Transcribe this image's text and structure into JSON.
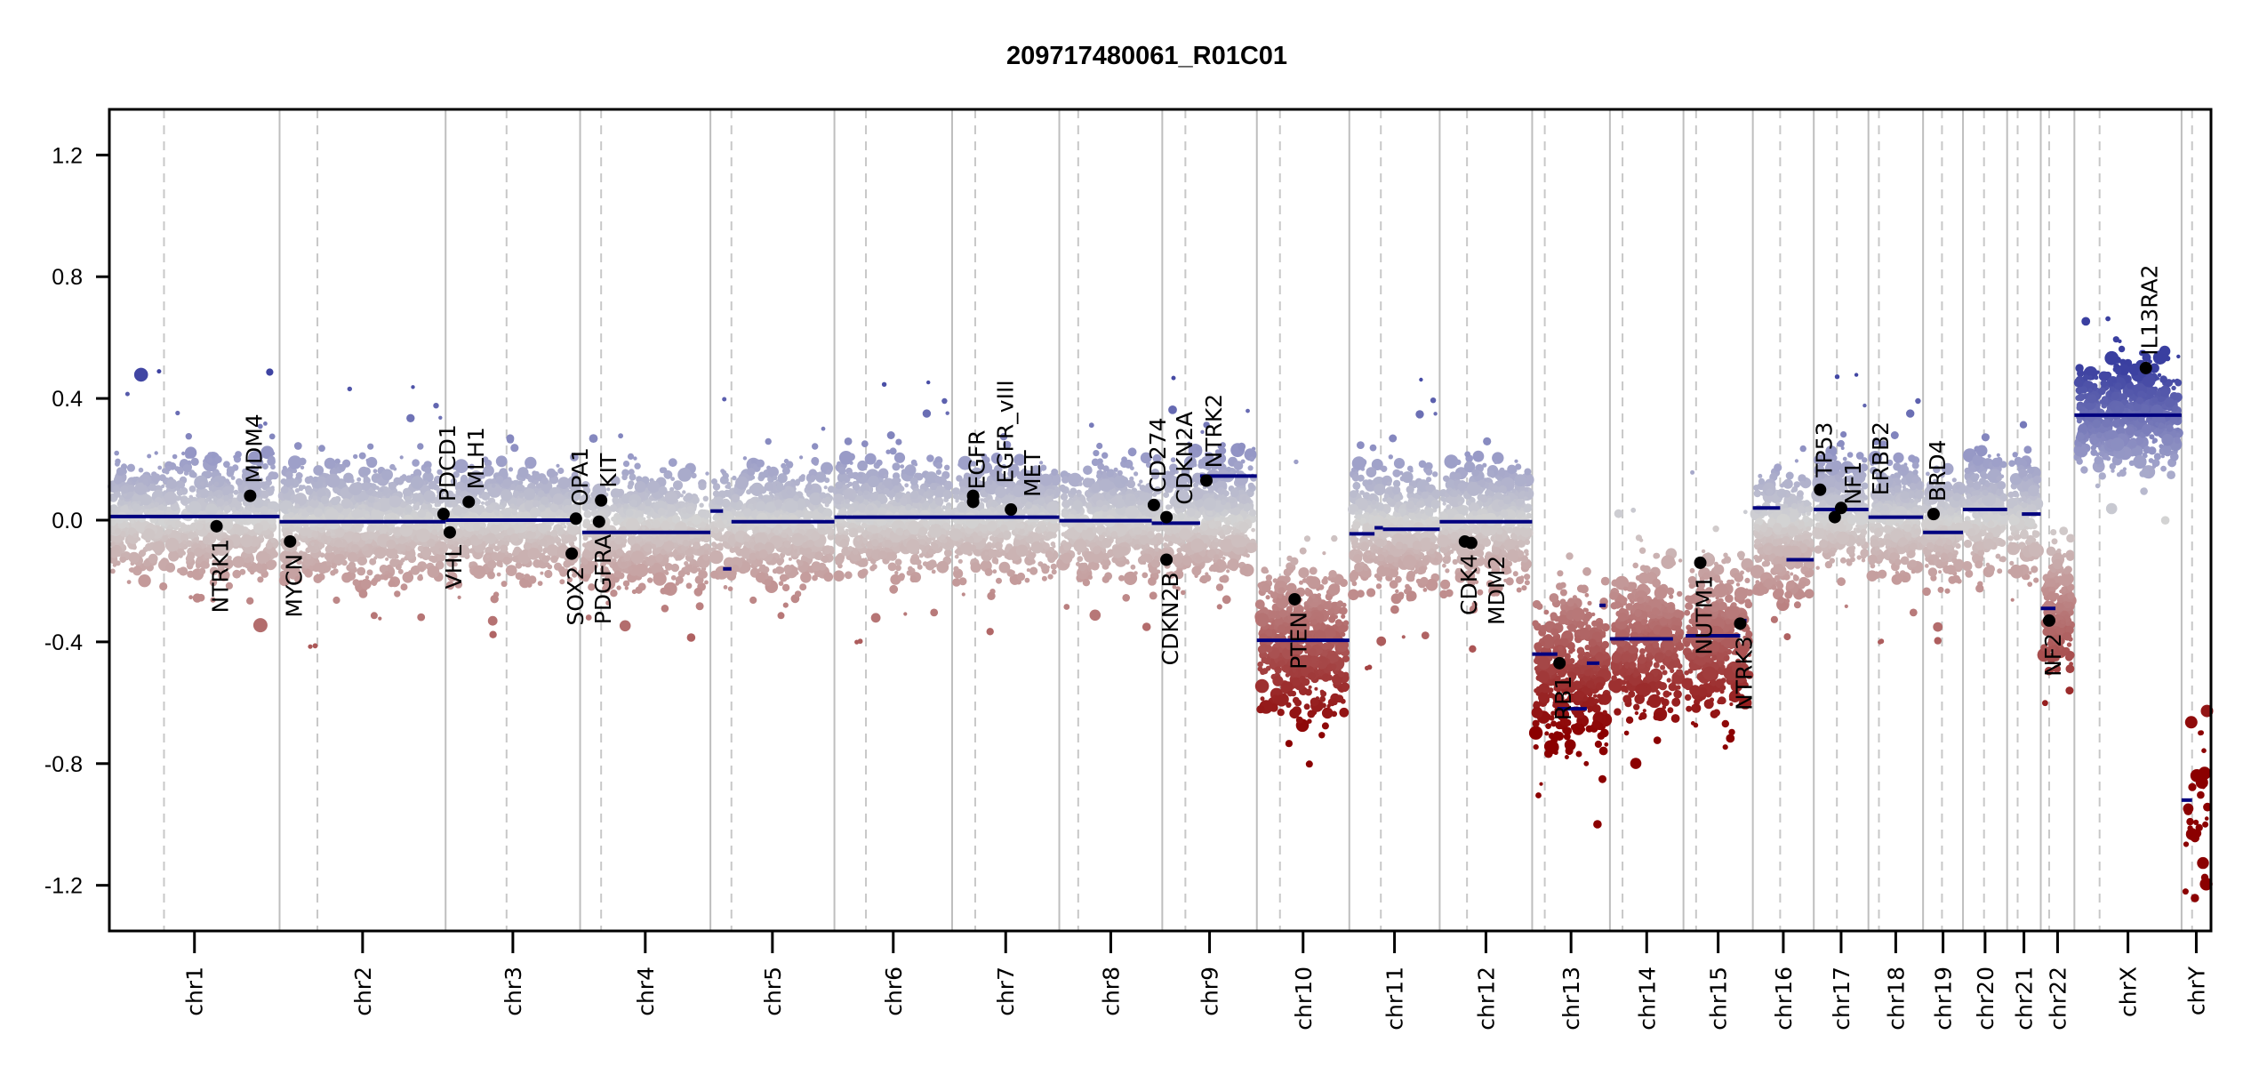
{
  "chart_data": {
    "type": "scatter",
    "title": "209717480061_R01C01",
    "xlabel": "",
    "ylabel": "",
    "ylim": [
      -1.35,
      1.35
    ],
    "y_ticks": [
      "1.2",
      "0.8",
      "0.4",
      "0.0",
      "-0.4",
      "-0.8",
      "-1.2"
    ],
    "y_tick_values": [
      1.2,
      0.8,
      0.4,
      0.0,
      -0.4,
      -0.8,
      -1.2
    ],
    "grid": "chromosome boundaries (solid grey) and centromeres (dashed grey)",
    "legend": "none",
    "colors": {
      "segment": "#00007f",
      "gain_strong": "#3a3fa0",
      "gain": "#9b9dc8",
      "neutral": "#d3d3d3",
      "loss": "#c49a9a",
      "loss_strong": "#8b0000",
      "gene_point": "#000000",
      "boundary": "#bebebe"
    },
    "chromosomes": [
      {
        "name": "chr1",
        "start": 0.0,
        "end": 8.1,
        "centromere": 2.6
      },
      {
        "name": "chr2",
        "start": 8.1,
        "end": 16.0,
        "centromere": 9.9
      },
      {
        "name": "chr3",
        "start": 16.0,
        "end": 22.4,
        "centromere": 18.9
      },
      {
        "name": "chr4",
        "start": 22.4,
        "end": 28.6,
        "centromere": 23.4
      },
      {
        "name": "chr5",
        "start": 28.6,
        "end": 34.5,
        "centromere": 29.6
      },
      {
        "name": "chr6",
        "start": 34.5,
        "end": 40.1,
        "centromere": 36.0
      },
      {
        "name": "chr7",
        "start": 40.1,
        "end": 45.2,
        "centromere": 41.2
      },
      {
        "name": "chr8",
        "start": 45.2,
        "end": 50.1,
        "centromere": 46.1
      },
      {
        "name": "chr9",
        "start": 50.1,
        "end": 54.6,
        "centromere": 51.2
      },
      {
        "name": "chr10",
        "start": 54.6,
        "end": 59.0,
        "centromere": 55.7
      },
      {
        "name": "chr11",
        "start": 59.0,
        "end": 63.3,
        "centromere": 60.5
      },
      {
        "name": "chr12",
        "start": 63.3,
        "end": 67.7,
        "centromere": 64.6
      },
      {
        "name": "chr13",
        "start": 67.7,
        "end": 71.4,
        "centromere": 68.3
      },
      {
        "name": "chr14",
        "start": 71.4,
        "end": 74.9,
        "centromere": 72.0
      },
      {
        "name": "chr15",
        "start": 74.9,
        "end": 78.2,
        "centromere": 75.5
      },
      {
        "name": "chr16",
        "start": 78.2,
        "end": 81.1,
        "centromere": 79.5
      },
      {
        "name": "chr17",
        "start": 81.1,
        "end": 83.7,
        "centromere": 82.2
      },
      {
        "name": "chr18",
        "start": 83.7,
        "end": 86.3,
        "centromere": 84.2
      },
      {
        "name": "chr19",
        "start": 86.3,
        "end": 88.2,
        "centromere": 87.2
      },
      {
        "name": "chr20",
        "start": 88.2,
        "end": 90.3,
        "centromere": 89.2
      },
      {
        "name": "chr21",
        "start": 90.3,
        "end": 91.9,
        "centromere": 90.8
      },
      {
        "name": "chr22",
        "start": 91.9,
        "end": 93.5,
        "centromere": 92.3
      },
      {
        "name": "chrX",
        "start": 93.5,
        "end": 98.6,
        "centromere": 94.7
      },
      {
        "name": "chrY",
        "start": 98.6,
        "end": 100.0,
        "centromere": 99.1
      }
    ],
    "segments": [
      {
        "chr": "chr1",
        "x0": 0.0,
        "x1": 8.1,
        "y": 0.012
      },
      {
        "chr": "chr2",
        "x0": 8.1,
        "x1": 16.0,
        "y": -0.005
      },
      {
        "chr": "chr3",
        "x0": 16.0,
        "x1": 22.4,
        "y": 0.0
      },
      {
        "chr": "chr4",
        "x0": 22.5,
        "x1": 28.6,
        "y": -0.04
      },
      {
        "chr": "chr5",
        "x0": 28.6,
        "x1": 29.2,
        "y": 0.03
      },
      {
        "chr": "chr5",
        "x0": 29.2,
        "x1": 29.6,
        "y": -0.16
      },
      {
        "chr": "chr5",
        "x0": 29.6,
        "x1": 34.5,
        "y": -0.005
      },
      {
        "chr": "chr6",
        "x0": 34.5,
        "x1": 40.1,
        "y": 0.01
      },
      {
        "chr": "chr7",
        "x0": 40.1,
        "x1": 45.2,
        "y": 0.01
      },
      {
        "chr": "chr8",
        "x0": 45.2,
        "x1": 49.6,
        "y": -0.002
      },
      {
        "chr": "chr8",
        "x0": 49.6,
        "x1": 50.1,
        "y": -0.01
      },
      {
        "chr": "chr9",
        "x0": 50.1,
        "x1": 51.9,
        "y": -0.01
      },
      {
        "chr": "chr9",
        "x0": 51.9,
        "x1": 54.6,
        "y": 0.145
      },
      {
        "chr": "chr10",
        "x0": 54.6,
        "x1": 59.0,
        "y": -0.395
      },
      {
        "chr": "chr11",
        "x0": 59.0,
        "x1": 60.2,
        "y": -0.045
      },
      {
        "chr": "chr11",
        "x0": 60.2,
        "x1": 60.6,
        "y": -0.025
      },
      {
        "chr": "chr11",
        "x0": 60.6,
        "x1": 63.3,
        "y": -0.03
      },
      {
        "chr": "chr12",
        "x0": 63.3,
        "x1": 67.7,
        "y": -0.005
      },
      {
        "chr": "chr13",
        "x0": 67.7,
        "x1": 68.9,
        "y": -0.44
      },
      {
        "chr": "chr13",
        "x0": 68.9,
        "x1": 70.3,
        "y": -0.62
      },
      {
        "chr": "chr13",
        "x0": 70.3,
        "x1": 70.9,
        "y": -0.47
      },
      {
        "chr": "chr13",
        "x0": 70.9,
        "x1": 71.2,
        "y": -0.28
      },
      {
        "chr": "chr14",
        "x0": 71.4,
        "x1": 74.4,
        "y": -0.39
      },
      {
        "chr": "chr15",
        "x0": 75.0,
        "x1": 77.6,
        "y": -0.38
      },
      {
        "chr": "chr15",
        "x0": 77.6,
        "x1": 77.9,
        "y": -0.33
      },
      {
        "chr": "chr16",
        "x0": 78.2,
        "x1": 79.5,
        "y": 0.04
      },
      {
        "chr": "chr16",
        "x0": 79.8,
        "x1": 81.1,
        "y": -0.13
      },
      {
        "chr": "chr17",
        "x0": 81.1,
        "x1": 83.7,
        "y": 0.035
      },
      {
        "chr": "chr18",
        "x0": 83.7,
        "x1": 86.3,
        "y": 0.01
      },
      {
        "chr": "chr19",
        "x0": 86.3,
        "x1": 88.2,
        "y": -0.04
      },
      {
        "chr": "chr20",
        "x0": 88.2,
        "x1": 90.3,
        "y": 0.035
      },
      {
        "chr": "chr21",
        "x0": 91.0,
        "x1": 91.9,
        "y": 0.02
      },
      {
        "chr": "chr22",
        "x0": 91.9,
        "x1": 92.6,
        "y": -0.29
      },
      {
        "chr": "chrX",
        "x0": 93.5,
        "x1": 98.6,
        "y": 0.345
      },
      {
        "chr": "chrY",
        "x0": 98.6,
        "x1": 99.1,
        "y": -0.92
      }
    ],
    "genes": [
      {
        "name": "NTRK1",
        "x": 5.1,
        "y": -0.02,
        "label_side": "below"
      },
      {
        "name": "MDM4",
        "x": 6.7,
        "y": 0.08,
        "label_side": "above"
      },
      {
        "name": "MYCN",
        "x": 8.6,
        "y": -0.07,
        "label_side": "below"
      },
      {
        "name": "PDCD1",
        "x": 15.9,
        "y": 0.02,
        "label_side": "above"
      },
      {
        "name": "VHL",
        "x": 16.2,
        "y": -0.04,
        "label_side": "below"
      },
      {
        "name": "MLH1",
        "x": 17.1,
        "y": 0.06,
        "label_side": "above"
      },
      {
        "name": "SOX2",
        "x": 22.0,
        "y": -0.11,
        "label_side": "below"
      },
      {
        "name": "OPA1",
        "x": 22.2,
        "y": 0.005,
        "label_side": "above"
      },
      {
        "name": "PDGFRA",
        "x": 23.3,
        "y": -0.005,
        "label_side": "below"
      },
      {
        "name": "KIT",
        "x": 23.4,
        "y": 0.065,
        "label_side": "above"
      },
      {
        "name": "EGFR",
        "x": 41.1,
        "y": 0.06,
        "label_side": "above"
      },
      {
        "name": "EGFR_vIII",
        "x": 41.1,
        "y": 0.08,
        "label_side": "above"
      },
      {
        "name": "MET",
        "x": 42.9,
        "y": 0.035,
        "label_side": "above"
      },
      {
        "name": "CD274",
        "x": 49.7,
        "y": 0.05,
        "label_side": "above"
      },
      {
        "name": "CDKN2A",
        "x": 50.3,
        "y": 0.01,
        "label_side": "above"
      },
      {
        "name": "CDKN2B",
        "x": 50.3,
        "y": -0.13,
        "label_side": "below"
      },
      {
        "name": "NTRK2",
        "x": 52.2,
        "y": 0.13,
        "label_side": "above"
      },
      {
        "name": "PTEN",
        "x": 56.4,
        "y": -0.26,
        "label_side": "below"
      },
      {
        "name": "CDK4",
        "x": 64.5,
        "y": -0.07,
        "label_side": "below"
      },
      {
        "name": "MDM2",
        "x": 64.8,
        "y": -0.075,
        "label_side": "below"
      },
      {
        "name": "RB1",
        "x": 69.0,
        "y": -0.47,
        "label_side": "below"
      },
      {
        "name": "NUTM1",
        "x": 75.7,
        "y": -0.14,
        "label_side": "below"
      },
      {
        "name": "NTRK3",
        "x": 77.6,
        "y": -0.34,
        "label_side": "below"
      },
      {
        "name": "TP53",
        "x": 81.4,
        "y": 0.1,
        "label_side": "above"
      },
      {
        "name": "NF1",
        "x": 82.1,
        "y": 0.01,
        "label_side": "above"
      },
      {
        "name": "ERBB2",
        "x": 82.4,
        "y": 0.04,
        "label_side": "above"
      },
      {
        "name": "BRD4",
        "x": 86.8,
        "y": 0.02,
        "label_side": "above"
      },
      {
        "name": "NF2",
        "x": 92.3,
        "y": -0.33,
        "label_side": "below"
      },
      {
        "name": "IL13RA2",
        "x": 96.9,
        "y": 0.5,
        "label_side": "above"
      }
    ],
    "probe_clouds": [
      {
        "chr": "chr1",
        "center": 0.012,
        "spread": 0.09
      },
      {
        "chr": "chr2",
        "center": -0.005,
        "spread": 0.09
      },
      {
        "chr": "chr3",
        "center": 0.0,
        "spread": 0.09
      },
      {
        "chr": "chr4",
        "center": -0.04,
        "spread": 0.09
      },
      {
        "chr": "chr5",
        "center": -0.005,
        "spread": 0.09
      },
      {
        "chr": "chr6",
        "center": 0.01,
        "spread": 0.09
      },
      {
        "chr": "chr7",
        "center": 0.01,
        "spread": 0.09
      },
      {
        "chr": "chr8",
        "center": -0.005,
        "spread": 0.09
      },
      {
        "chr": "chr9",
        "center": 0.02,
        "spread": 0.1
      },
      {
        "chr": "chr10",
        "center": -0.39,
        "spread": 0.12
      },
      {
        "chr": "chr11",
        "center": -0.03,
        "spread": 0.1
      },
      {
        "chr": "chr12",
        "center": -0.005,
        "spread": 0.1
      },
      {
        "chr": "chr13",
        "center": -0.5,
        "spread": 0.13
      },
      {
        "chr": "chr14",
        "center": -0.39,
        "spread": 0.12
      },
      {
        "chr": "chr15",
        "center": -0.38,
        "spread": 0.12
      },
      {
        "chr": "chr16",
        "center": -0.04,
        "spread": 0.1
      },
      {
        "chr": "chr17",
        "center": 0.035,
        "spread": 0.09
      },
      {
        "chr": "chr18",
        "center": 0.01,
        "spread": 0.09
      },
      {
        "chr": "chr19",
        "center": -0.02,
        "spread": 0.09
      },
      {
        "chr": "chr20",
        "center": 0.035,
        "spread": 0.09
      },
      {
        "chr": "chr21",
        "center": 0.02,
        "spread": 0.1
      },
      {
        "chr": "chr22",
        "center": -0.29,
        "spread": 0.1
      },
      {
        "chr": "chrX",
        "center": 0.345,
        "spread": 0.09
      },
      {
        "chr": "chrY",
        "center": -0.92,
        "spread": 0.15
      }
    ]
  }
}
